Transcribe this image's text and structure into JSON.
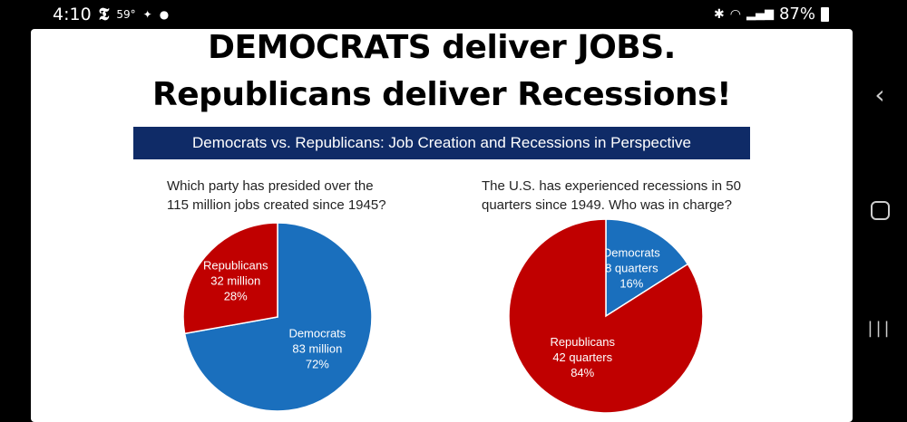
{
  "status_bar": {
    "time": "4:10",
    "temperature": "59°",
    "battery": "87%"
  },
  "slide": {
    "headline_line1": "DEMOCRATS deliver JOBS.",
    "headline_line2": "Republicans deliver Recessions!",
    "banner": "Democrats vs. Republicans:  Job Creation and Recessions in Perspective"
  },
  "colors": {
    "democrats": "#1a6fbd",
    "republicans": "#c00000",
    "banner": "#0f2b67"
  },
  "chart_data": [
    {
      "type": "pie",
      "title_line1": "Which party has presided over the",
      "title_line2": "115 million jobs created since 1945?",
      "legend": "none",
      "slices": [
        {
          "name": "Democrats",
          "value": 83,
          "value_label": "83 million",
          "percent_label": "72%",
          "color": "#1a6fbd"
        },
        {
          "name": "Republicans",
          "value": 32,
          "value_label": "32 million",
          "percent_label": "28%",
          "color": "#c00000"
        }
      ]
    },
    {
      "type": "pie",
      "title_line1": "The U.S. has experienced recessions in 50",
      "title_line2": "quarters since 1949.  Who was in charge?",
      "legend": "none",
      "slices": [
        {
          "name": "Democrats",
          "value": 8,
          "value_label": "8 quarters",
          "percent_label": "16%",
          "color": "#1a6fbd"
        },
        {
          "name": "Republicans",
          "value": 42,
          "value_label": "42 quarters",
          "percent_label": "84%",
          "color": "#c00000"
        }
      ]
    }
  ]
}
